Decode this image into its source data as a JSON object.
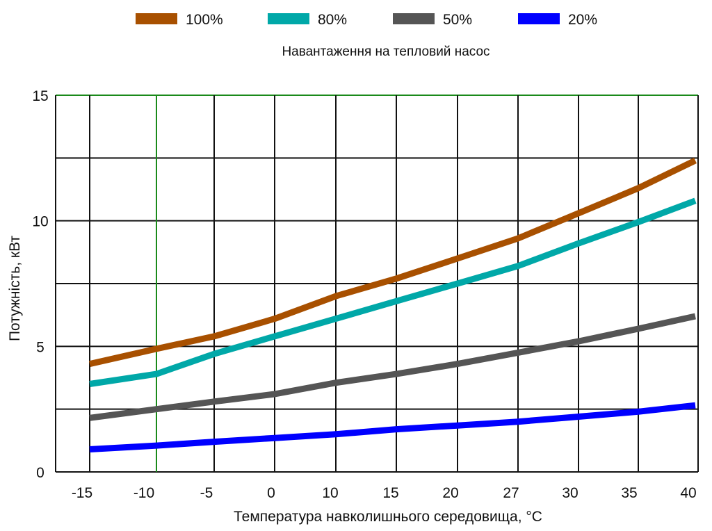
{
  "chart_data": {
    "type": "line",
    "title": "Навантаження на тепловий насос",
    "xlabel": "Температура навколишнього середовища, °C",
    "ylabel": "Потужність, кВт",
    "categories": [
      "-15",
      "-10",
      "-5",
      "0",
      "10",
      "15",
      "20",
      "27",
      "30",
      "35",
      "40"
    ],
    "yticks": [
      "0",
      "5",
      "10",
      "15"
    ],
    "ylim": [
      0,
      15
    ],
    "grid": true,
    "legend_position": "top",
    "series": [
      {
        "name": "100%",
        "color": "#a85000",
        "values": [
          4.3,
          4.9,
          5.4,
          6.1,
          7.0,
          7.7,
          8.5,
          9.3,
          10.3,
          11.3,
          12.4
        ]
      },
      {
        "name": "80%",
        "color": "#00a8a8",
        "values": [
          3.5,
          3.9,
          4.7,
          5.4,
          6.1,
          6.8,
          7.5,
          8.2,
          9.1,
          9.95,
          10.8
        ]
      },
      {
        "name": "50%",
        "color": "#555555",
        "values": [
          2.15,
          2.5,
          2.8,
          3.1,
          3.55,
          3.9,
          4.3,
          4.75,
          5.2,
          5.7,
          6.2
        ]
      },
      {
        "name": "20%",
        "color": "#0000ff",
        "values": [
          0.9,
          1.05,
          1.2,
          1.35,
          1.5,
          1.7,
          1.85,
          2.0,
          2.2,
          2.4,
          2.65
        ]
      }
    ]
  }
}
